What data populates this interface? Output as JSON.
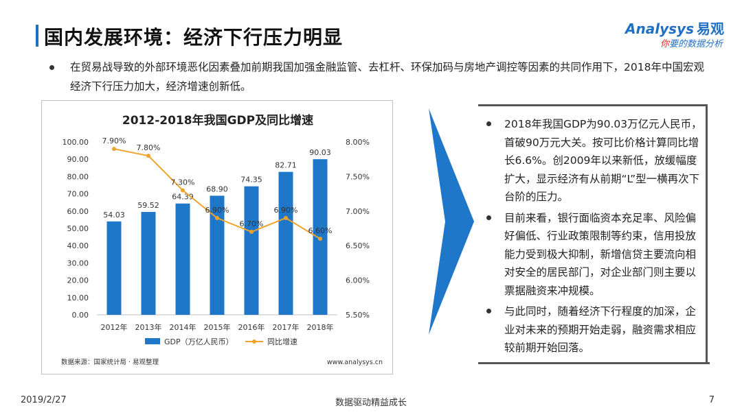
{
  "header": {
    "title": "国内发展环境：经济下行压力明显"
  },
  "logo": {
    "brand": "nalysys",
    "brand_prefix": "A",
    "brand_cn": "易观",
    "tagline_red": "你",
    "tagline": "要的数据分析"
  },
  "intro": {
    "text": "在贸易战导致的外部环境恶化因素叠加前期我国加强金融监管、去杠杆、环保加码与房地产调控等因素的共同作用下，2018年中国宏观经济下行压力加大，经济增速创新低。"
  },
  "chart_data": {
    "type": "bar",
    "title": "2012-2018年我国GDP及同比增速",
    "categories": [
      "2012年",
      "2013年",
      "2014年",
      "2015年",
      "2016年",
      "2017年",
      "2018年"
    ],
    "series": [
      {
        "name": "GDP（万亿人民币）",
        "type": "bar",
        "axis": "left",
        "values": [
          54.03,
          59.52,
          64.39,
          68.9,
          74.35,
          82.71,
          90.03
        ],
        "color": "#1f77c9"
      },
      {
        "name": "同比增速",
        "type": "line",
        "axis": "right",
        "values": [
          7.9,
          7.8,
          7.3,
          6.9,
          6.7,
          6.9,
          6.6
        ],
        "labels": [
          "7.90%",
          "7.80%",
          "7.30%",
          "6.90%",
          "6.70%",
          "6.90%",
          "6.60%"
        ],
        "color": "#f0a32c"
      }
    ],
    "y_left": {
      "min": 0,
      "max": 100,
      "ticks": [
        "0.00",
        "10.00",
        "20.00",
        "30.00",
        "40.00",
        "50.00",
        "60.00",
        "70.00",
        "80.00",
        "90.00",
        "100.00"
      ]
    },
    "y_right": {
      "min": 5.5,
      "max": 8.0,
      "ticks": [
        "5.50%",
        "6.00%",
        "6.50%",
        "7.00%",
        "7.50%",
        "8.00%"
      ]
    },
    "bar_labels": [
      "54.03",
      "59.52",
      "64.39",
      "68.90",
      "74.35",
      "82.71",
      "90.03"
    ],
    "legend_position": "bottom",
    "source": "数据来源：国家统计局 · 易观整理",
    "site": "www.analysys.cn"
  },
  "bullets": [
    "2018年我国GDP为90.03万亿元人民币，首破90万元大关。按可比价格计算同比增长6.6%。创2009年以来新低，放缓幅度扩大，显示经济有从前期“L”型一横再次下台阶的压力。",
    "目前来看，银行面临资本充足率、风险偏好偏低、行业政策限制等约束，信用投放能力受到极大抑制，新增信贷主要流向相对安全的居民部门，对企业部门则主要以票据融资来冲规模。",
    "与此同时，随着经济下行程度的加深，企业对未来的预期开始走弱，融资需求相应较前期开始回落。"
  ],
  "footer": {
    "date": "2019/2/27",
    "slogan": "数据驱动精益成长",
    "page": "7"
  },
  "colors": {
    "accent": "#1f6fc5",
    "bar": "#1f77c9",
    "line": "#f0a32c"
  }
}
